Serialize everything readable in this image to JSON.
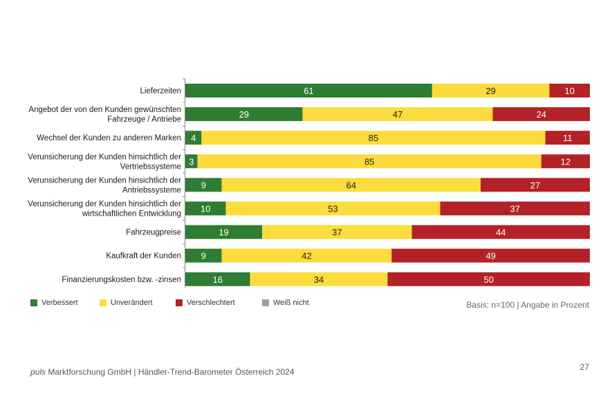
{
  "chart_data": {
    "type": "bar",
    "orientation": "horizontal",
    "stacked": true,
    "categories": [
      "Lieferzeiten",
      "Angebot der von den Kunden gewünschten Fahrzeuge / Antriebe",
      "Wechsel der Kunden zu anderen Marken",
      "Verunsicherung der Kunden hinsichtlich der Vertriebssysteme",
      "Verunsicherung der Kunden hinsichtlich der Antriebssysteme",
      "Verunsicherung der Kunden hinsichtlich der wirtschaftlichen Entwicklung",
      "Fahrzeugpreise",
      "Kaufkraft der Kunden",
      "Finanzierungskosten bzw. -zinsen"
    ],
    "category_lines": [
      [
        "Lieferzeiten"
      ],
      [
        "Angebot der von den Kunden gewünschten",
        "Fahrzeuge / Antriebe"
      ],
      [
        "Wechsel der Kunden zu anderen Marken"
      ],
      [
        "Verunsicherung der Kunden hinsichtlich der",
        "Vertriebssysteme"
      ],
      [
        "Verunsicherung der Kunden hinsichtlich der",
        "Antriebssysteme"
      ],
      [
        "Verunsicherung der Kunden hinsichtlich der",
        "wirtschaftlichen Entwicklung"
      ],
      [
        "Fahrzeugpreise"
      ],
      [
        "Kaufkraft der Kunden"
      ],
      [
        "Finanzierungskosten bzw. -zinsen"
      ]
    ],
    "series": [
      {
        "name": "Verbessert",
        "color": "#2e7d32",
        "values": [
          61,
          29,
          4,
          3,
          9,
          10,
          19,
          9,
          16
        ]
      },
      {
        "name": "Unverändert",
        "color": "#fbdc3c",
        "values": [
          29,
          47,
          85,
          85,
          64,
          53,
          37,
          42,
          34
        ]
      },
      {
        "name": "Verschlechtert",
        "color": "#b22226",
        "values": [
          10,
          24,
          11,
          12,
          27,
          37,
          44,
          49,
          50
        ]
      },
      {
        "name": "Weiß nicht",
        "color": "#9e9e9e",
        "values": [
          0,
          0,
          0,
          0,
          0,
          0,
          0,
          0,
          0
        ]
      }
    ],
    "xlim": [
      0,
      100
    ],
    "legend_position": "bottom-left"
  },
  "basis_note": "Basis: n=100 | Angabe in Prozent",
  "footer": {
    "brand": "puls",
    "text": " Marktforschung GmbH | Händler-Trend-Barometer Österreich 2024"
  },
  "page_number": "27"
}
